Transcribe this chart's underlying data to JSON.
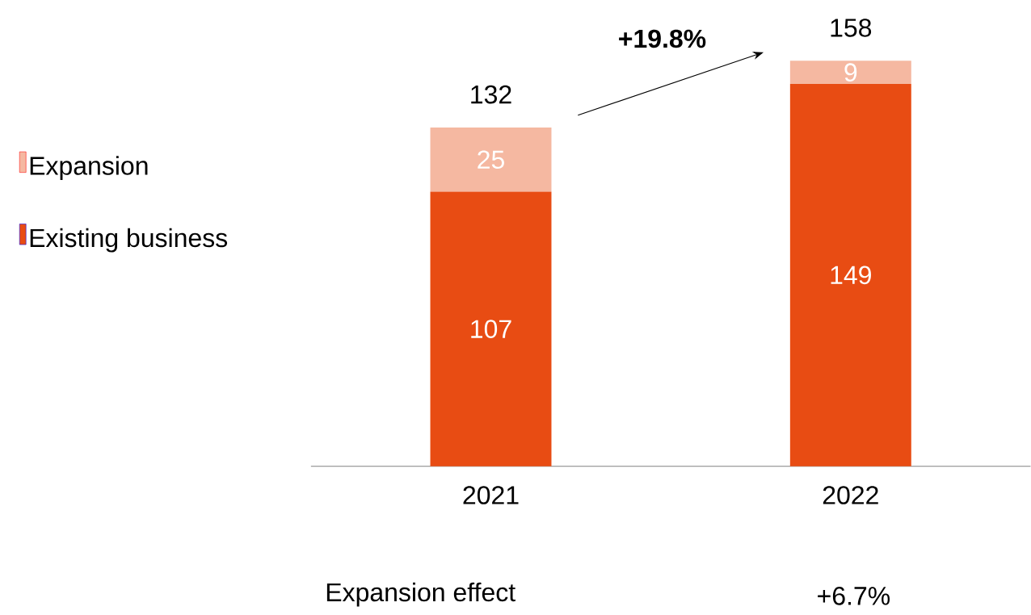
{
  "chart_data": {
    "type": "bar",
    "stacked": true,
    "data_labels": true,
    "legend": "left",
    "categories": [
      "2021",
      "2022"
    ],
    "series": [
      {
        "name": "Existing business",
        "color": "#e84c13",
        "values": [
          107,
          149
        ]
      },
      {
        "name": "Expansion",
        "color": "#f5b8a1",
        "values": [
          25,
          9
        ]
      }
    ],
    "totals": [
      "132",
      "158"
    ],
    "annotations": [
      "+19.8%",
      "Expansion effect",
      "+6.7%"
    ]
  }
}
